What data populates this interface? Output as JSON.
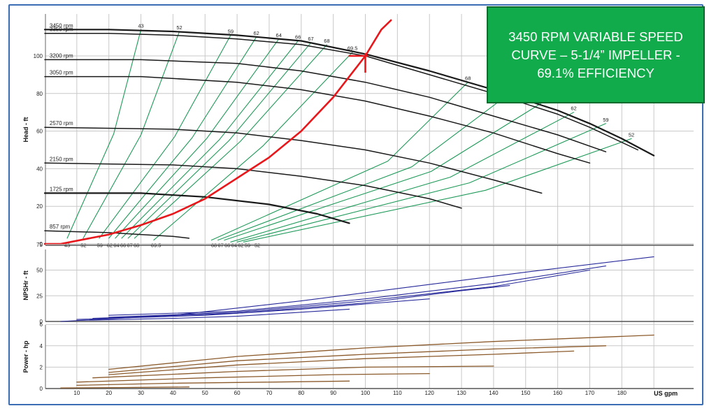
{
  "callout": {
    "text": "3450 RPM VARIABLE SPEED CURVE – 5-1/4” IMPELLER - 69.1% EFFICIENCY",
    "background": "#12ab4b"
  },
  "chart_data": {
    "type": "line",
    "xlabel": "US gpm",
    "x_ticks": [
      "10",
      "20",
      "30",
      "40",
      "50",
      "60",
      "70",
      "80",
      "90",
      "100",
      "110",
      "120",
      "130",
      "140",
      "150",
      "160",
      "170",
      "180"
    ],
    "xlim": [
      0,
      190
    ],
    "colors": {
      "head": "#1a1a1a",
      "efficiency": "#1f9a5a",
      "system": "#e8171b",
      "npsh": "#27299a",
      "power": "#8b5a2b",
      "grid": "#c8c8c8"
    },
    "panels": [
      {
        "name": "head",
        "ylabel": "Head - ft",
        "ylim": [
          0,
          118
        ],
        "y_ticks": [
          "0",
          "20",
          "40",
          "60",
          "80",
          "100"
        ],
        "speed_curves": [
          {
            "label": "3450 rpm",
            "points": [
              [
                0,
                114
              ],
              [
                20,
                114
              ],
              [
                40,
                113
              ],
              [
                60,
                111
              ],
              [
                80,
                108
              ],
              [
                100,
                101
              ],
              [
                120,
                92
              ],
              [
                140,
                82
              ],
              [
                160,
                71
              ],
              [
                170,
                64
              ],
              [
                180,
                56
              ],
              [
                190,
                47
              ]
            ]
          },
          {
            "label": "3350 rpm",
            "points": [
              [
                0,
                112
              ],
              [
                20,
                112
              ],
              [
                40,
                111
              ],
              [
                60,
                109
              ],
              [
                80,
                106
              ],
              [
                100,
                100
              ],
              [
                120,
                90
              ],
              [
                140,
                80
              ],
              [
                160,
                69
              ],
              [
                170,
                62
              ],
              [
                185,
                50
              ]
            ]
          },
          {
            "label": "3200 rpm",
            "points": [
              [
                0,
                98
              ],
              [
                30,
                98
              ],
              [
                60,
                96
              ],
              [
                80,
                92
              ],
              [
                100,
                86
              ],
              [
                120,
                78
              ],
              [
                140,
                68
              ],
              [
                160,
                58
              ],
              [
                175,
                49
              ]
            ]
          },
          {
            "label": "3050 rpm",
            "points": [
              [
                0,
                89
              ],
              [
                30,
                89
              ],
              [
                60,
                86
              ],
              [
                80,
                82
              ],
              [
                100,
                76
              ],
              [
                120,
                68
              ],
              [
                140,
                59
              ],
              [
                160,
                48
              ],
              [
                170,
                43
              ]
            ]
          },
          {
            "label": "2570 rpm",
            "points": [
              [
                0,
                62
              ],
              [
                40,
                61
              ],
              [
                60,
                59
              ],
              [
                80,
                55
              ],
              [
                100,
                50
              ],
              [
                120,
                43
              ],
              [
                140,
                34
              ],
              [
                155,
                27
              ]
            ]
          },
          {
            "label": "2150 rpm",
            "points": [
              [
                0,
                43
              ],
              [
                40,
                42
              ],
              [
                60,
                40
              ],
              [
                80,
                36
              ],
              [
                100,
                31
              ],
              [
                120,
                24
              ],
              [
                130,
                19
              ]
            ]
          },
          {
            "label": "1725 rpm",
            "points": [
              [
                0,
                27
              ],
              [
                30,
                27
              ],
              [
                50,
                25
              ],
              [
                70,
                21
              ],
              [
                85,
                16
              ],
              [
                95,
                11
              ]
            ]
          },
          {
            "label": "857 rpm",
            "points": [
              [
                0,
                7
              ],
              [
                20,
                6
              ],
              [
                30,
                5
              ],
              [
                40,
                4
              ],
              [
                45,
                3
              ]
            ]
          }
        ],
        "system_curve": [
          [
            0,
            0
          ],
          [
            5,
            0
          ],
          [
            20,
            5
          ],
          [
            30,
            10
          ],
          [
            40,
            16
          ],
          [
            50,
            24
          ],
          [
            60,
            35
          ],
          [
            70,
            46
          ],
          [
            80,
            60
          ],
          [
            90,
            78
          ],
          [
            100,
            100
          ],
          [
            105,
            114
          ],
          [
            108,
            119
          ]
        ],
        "operating_point": [
          100,
          100
        ],
        "efficiency_labels": {
          "top": [
            "43",
            "52",
            "59",
            "62",
            "64",
            "66",
            "67",
            "68",
            "69.5",
            "68",
            "66",
            "64",
            "62",
            "59",
            "52"
          ],
          "bottom": [
            "43",
            "52",
            "59",
            "62",
            "64",
            "66",
            "67",
            "68",
            "69.5",
            "68",
            "67",
            "66",
            "64",
            "62",
            "59",
            "52"
          ]
        }
      },
      {
        "name": "npshr",
        "ylabel": "NPSHr - ft",
        "ylim": [
          0,
          75
        ],
        "y_ticks": [
          "0",
          "25",
          "50",
          "75"
        ],
        "curves": [
          {
            "points": [
              [
                5,
                0
              ],
              [
                40,
                6
              ],
              [
                80,
                20
              ],
              [
                120,
                36
              ],
              [
                150,
                48
              ],
              [
                190,
                63
              ]
            ]
          },
          {
            "points": [
              [
                20,
                6
              ],
              [
                60,
                10
              ],
              [
                100,
                22
              ],
              [
                140,
                37
              ],
              [
                175,
                54
              ]
            ]
          },
          {
            "points": [
              [
                20,
                4
              ],
              [
                60,
                9
              ],
              [
                100,
                20
              ],
              [
                140,
                34
              ],
              [
                170,
                50
              ]
            ]
          },
          {
            "points": [
              [
                15,
                3
              ],
              [
                60,
                8
              ],
              [
                100,
                18
              ],
              [
                130,
                30
              ],
              [
                145,
                35
              ]
            ]
          },
          {
            "points": [
              [
                10,
                2
              ],
              [
                50,
                6
              ],
              [
                80,
                12
              ],
              [
                100,
                17
              ],
              [
                120,
                22
              ]
            ]
          },
          {
            "points": [
              [
                10,
                1
              ],
              [
                40,
                3
              ],
              [
                60,
                5
              ],
              [
                80,
                9
              ],
              [
                95,
                12
              ]
            ]
          }
        ]
      },
      {
        "name": "power",
        "ylabel": "Power - hp",
        "ylim": [
          0,
          6
        ],
        "y_ticks": [
          "0",
          "2",
          "4",
          "6"
        ],
        "curves": [
          {
            "points": [
              [
                20,
                1.8
              ],
              [
                60,
                3
              ],
              [
                100,
                3.8
              ],
              [
                140,
                4.4
              ],
              [
                190,
                5
              ]
            ]
          },
          {
            "points": [
              [
                20,
                1.5
              ],
              [
                60,
                2.6
              ],
              [
                100,
                3.2
              ],
              [
                140,
                3.7
              ],
              [
                175,
                4
              ]
            ]
          },
          {
            "points": [
              [
                20,
                1.3
              ],
              [
                60,
                2.2
              ],
              [
                100,
                2.8
              ],
              [
                140,
                3.2
              ],
              [
                165,
                3.5
              ]
            ]
          },
          {
            "points": [
              [
                15,
                1
              ],
              [
                60,
                1.6
              ],
              [
                100,
                2
              ],
              [
                140,
                2.1
              ]
            ]
          },
          {
            "points": [
              [
                10,
                0.6
              ],
              [
                50,
                1
              ],
              [
                90,
                1.3
              ],
              [
                120,
                1.4
              ]
            ]
          },
          {
            "points": [
              [
                10,
                0.3
              ],
              [
                40,
                0.5
              ],
              [
                70,
                0.6
              ],
              [
                95,
                0.7
              ]
            ]
          },
          {
            "points": [
              [
                5,
                0.05
              ],
              [
                25,
                0.1
              ],
              [
                45,
                0.15
              ]
            ]
          }
        ]
      }
    ]
  }
}
